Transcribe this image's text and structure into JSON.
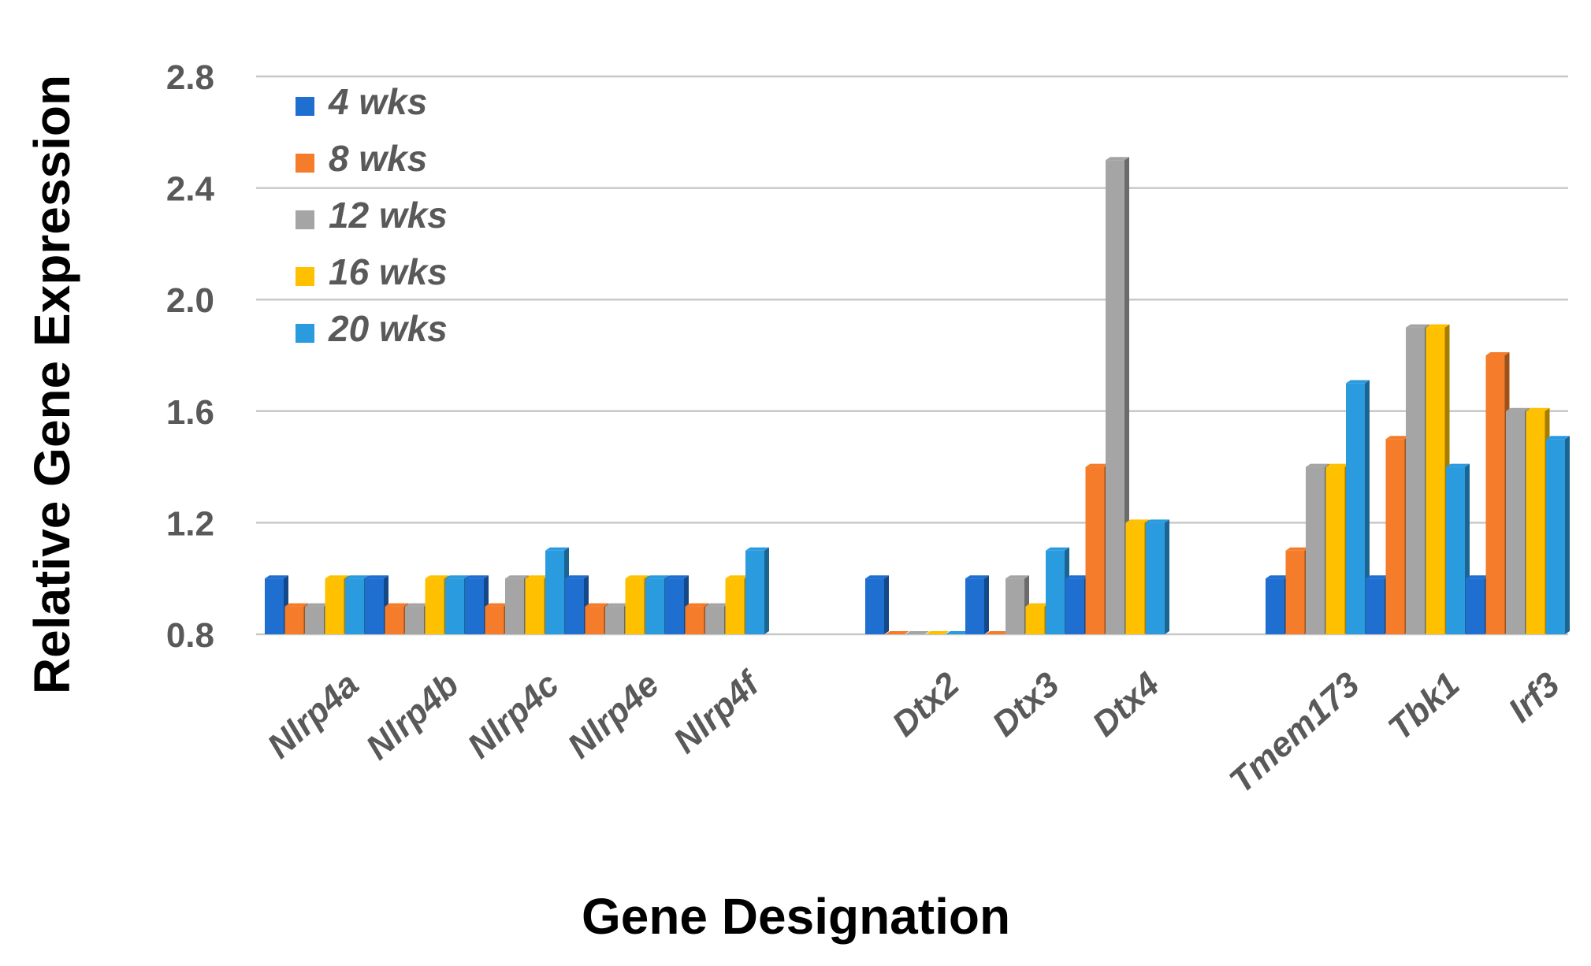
{
  "chart_data": {
    "type": "bar",
    "title": "",
    "xlabel": "Gene Designation",
    "ylabel": "Relative Gene Expression",
    "ylim": [
      0.8,
      2.8
    ],
    "yticks": [
      "0.8",
      "1.2",
      "1.6",
      "2.0",
      "2.4",
      "2.8"
    ],
    "grid": true,
    "legend_position": "top-left",
    "categories": [
      "Nlrp4a",
      "Nlrp4b",
      "Nlrp4c",
      "Nlrp4e",
      "Nlrp4f",
      "Dtx2",
      "Dtx3",
      "Dtx4",
      "Tmem173",
      "Tbk1",
      "Irf3"
    ],
    "groups": [
      [
        0,
        1,
        2,
        3,
        4
      ],
      [
        5,
        6,
        7
      ],
      [
        8,
        9,
        10
      ]
    ],
    "series": [
      {
        "name": "4 wks",
        "color": "#1f6fd1",
        "values": [
          1.0,
          1.0,
          1.0,
          1.0,
          1.0,
          1.0,
          1.0,
          1.0,
          1.0,
          1.0,
          1.0
        ]
      },
      {
        "name": "8 wks",
        "color": "#f47c2a",
        "values": [
          0.9,
          0.9,
          0.9,
          0.9,
          0.9,
          0.8,
          0.8,
          1.4,
          1.1,
          1.5,
          1.8
        ]
      },
      {
        "name": "12 wks",
        "color": "#a5a5a5",
        "values": [
          0.9,
          0.9,
          1.0,
          0.9,
          0.9,
          0.8,
          1.0,
          2.5,
          1.4,
          1.9,
          1.6
        ]
      },
      {
        "name": "16 wks",
        "color": "#ffc000",
        "values": [
          1.0,
          1.0,
          1.0,
          1.0,
          1.0,
          0.8,
          0.9,
          1.2,
          1.4,
          1.9,
          1.6
        ]
      },
      {
        "name": "20 wks",
        "color": "#2b9be0",
        "values": [
          1.0,
          1.0,
          1.1,
          1.0,
          1.1,
          0.8,
          1.1,
          1.2,
          1.7,
          1.4,
          1.5
        ]
      }
    ]
  }
}
